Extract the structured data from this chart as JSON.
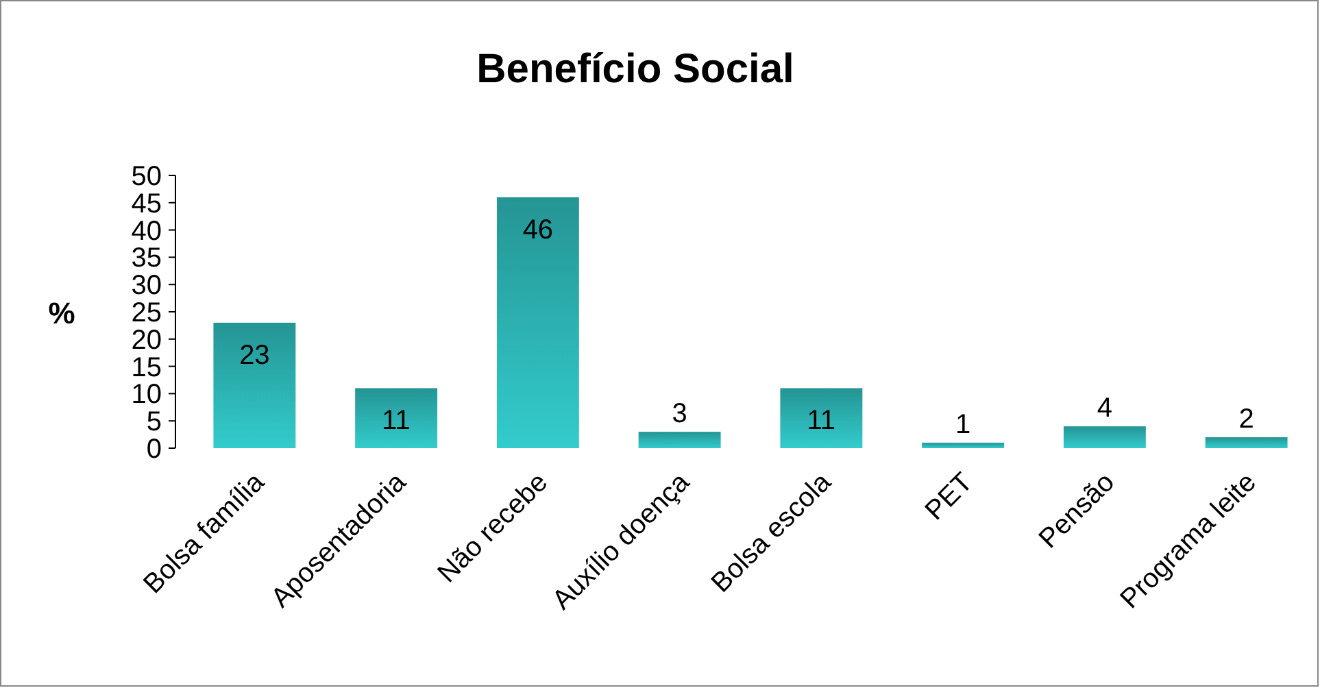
{
  "chart_data": {
    "type": "bar",
    "title": "Benefício Social",
    "ylabel": "%",
    "categories": [
      "Bolsa família",
      "Aposentadoria",
      "Não recebe",
      "Auxílio doença",
      "Bolsa escola",
      "PET",
      "Pensão",
      "Programa leite"
    ],
    "values": [
      23,
      11,
      46,
      3,
      11,
      1,
      4,
      2
    ],
    "color": "#33cccc",
    "ylim": [
      0,
      50
    ],
    "yticks": [
      0,
      5,
      10,
      15,
      20,
      25,
      30,
      35,
      40,
      45,
      50
    ],
    "data_labels": true
  }
}
